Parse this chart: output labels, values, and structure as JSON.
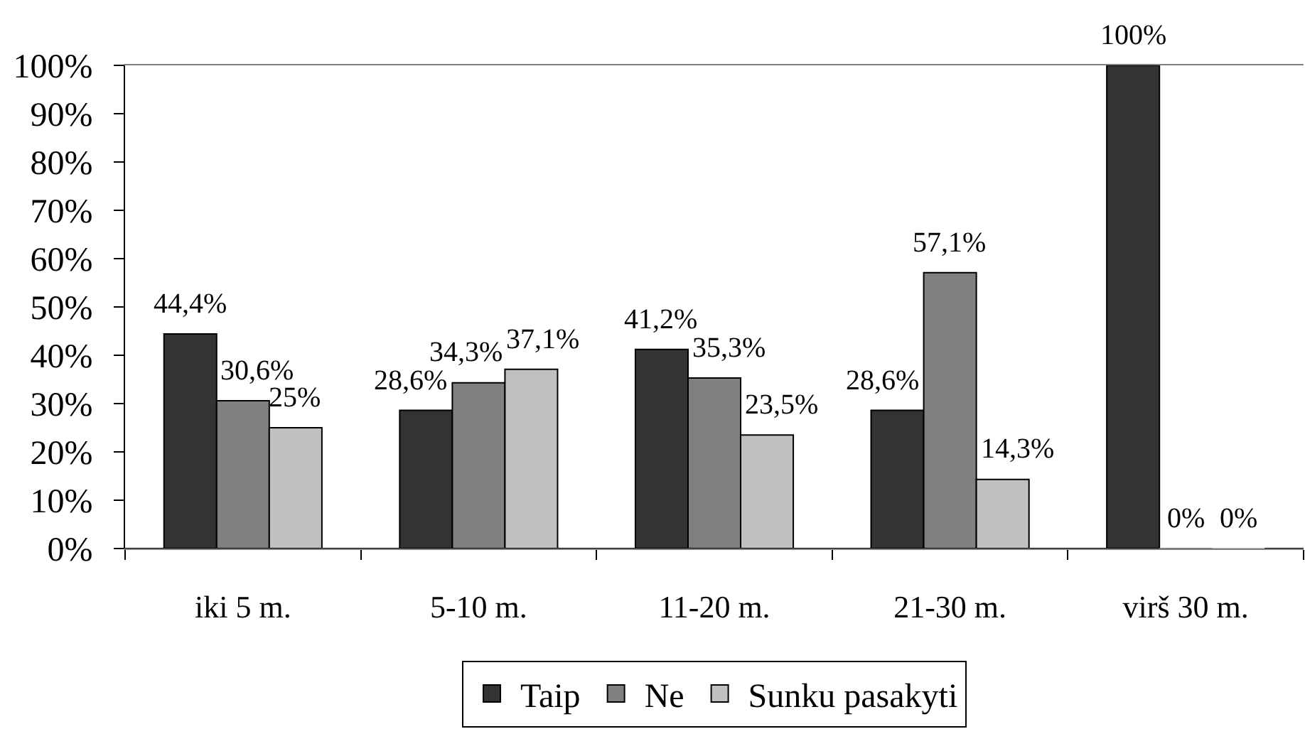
{
  "chart_data": {
    "type": "bar",
    "categories": [
      "iki 5 m.",
      "5-10 m.",
      "11-20 m.",
      "21-30 m.",
      "virš 30 m."
    ],
    "series": [
      {
        "name": "Taip",
        "color": "#333333",
        "values": [
          44.4,
          28.6,
          41.2,
          28.6,
          100
        ],
        "value_labels": [
          "44,4%",
          "28,6%",
          "41,2%",
          "28,6%",
          "100%"
        ]
      },
      {
        "name": "Ne",
        "color": "#808080",
        "values": [
          30.6,
          34.3,
          35.3,
          57.1,
          0
        ],
        "value_labels": [
          "30,6%",
          "34,3%",
          "35,3%",
          "57,1%",
          "0%"
        ]
      },
      {
        "name": "Sunku pasakyti",
        "color": "#c0c0c0",
        "values": [
          25,
          37.1,
          23.5,
          14.3,
          0
        ],
        "value_labels": [
          "25%",
          "37,1%",
          "23,5%",
          "14,3%",
          "0%"
        ]
      }
    ],
    "ylim": [
      0,
      100
    ],
    "yticks": [
      {
        "value": 0,
        "label": "0%"
      },
      {
        "value": 10,
        "label": "10%"
      },
      {
        "value": 20,
        "label": "20%"
      },
      {
        "value": 30,
        "label": "30%"
      },
      {
        "value": 40,
        "label": "40%"
      },
      {
        "value": 50,
        "label": "50%"
      },
      {
        "value": 60,
        "label": "60%"
      },
      {
        "value": 70,
        "label": "70%"
      },
      {
        "value": 80,
        "label": "80%"
      },
      {
        "value": 90,
        "label": "90%"
      },
      {
        "value": 100,
        "label": "100%"
      }
    ],
    "grid": false,
    "legend": "bottom"
  }
}
